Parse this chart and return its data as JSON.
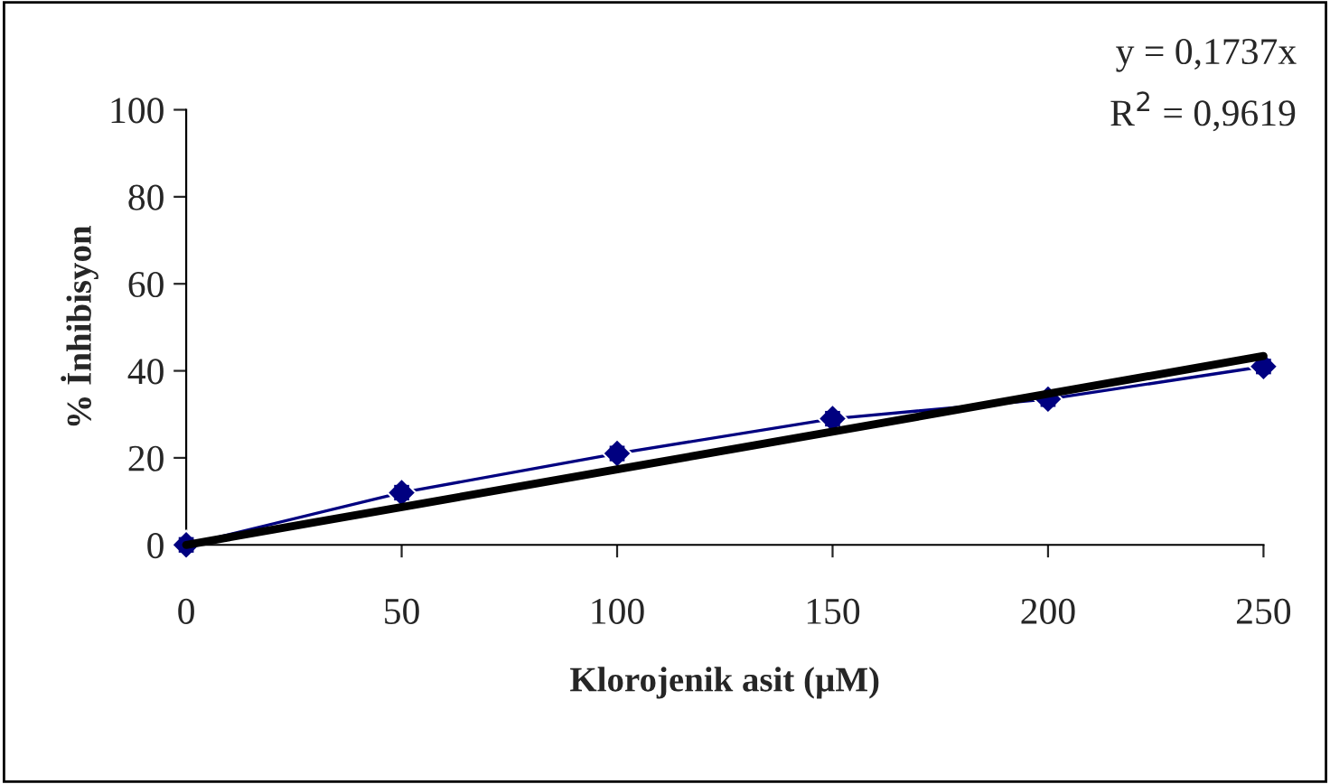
{
  "chart_data": {
    "type": "line",
    "xlabel": "Klorojenik asit (µM)",
    "ylabel": "% İnhibisyon",
    "x": [
      0,
      50,
      100,
      150,
      200,
      250
    ],
    "series": [
      {
        "color": "#000080",
        "marker": "diamond",
        "values": [
          0,
          12,
          21,
          29,
          33.5,
          41
        ],
        "errors": [
          1.5,
          1.5,
          1.5,
          1.5,
          1.5,
          1.5
        ]
      },
      {
        "color": "#000000",
        "marker": "none",
        "x": [
          0,
          250
        ],
        "values": [
          0,
          43.4
        ]
      }
    ],
    "xlim": [
      0,
      250
    ],
    "xticks": [
      0,
      50,
      100,
      150,
      200,
      250
    ],
    "ylim": [
      0,
      100
    ],
    "yticks": [
      0,
      20,
      40,
      60,
      80,
      100
    ],
    "grid": false,
    "annotations": [
      "y = 0,1737x",
      "R$^{2}$ = 0,9619"
    ]
  }
}
